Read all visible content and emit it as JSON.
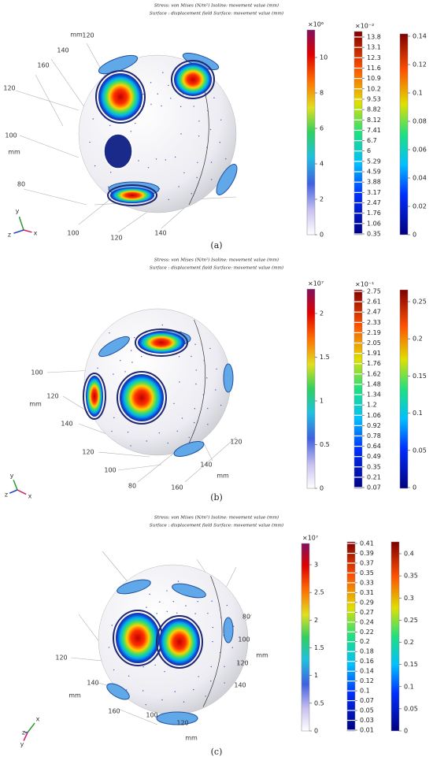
{
  "panels": [
    {
      "header": [
        "Stress: von Mises (N/m²)  Isoline: movement value (mm)",
        "Surface :  displacement field  Surface: movement value (mm)"
      ],
      "axis_labels": [
        "mm",
        "120",
        "140",
        "160",
        "120",
        "100",
        "mm",
        "80",
        "100",
        "120",
        "140"
      ],
      "triad": [
        "y",
        "z",
        "x"
      ],
      "caption": "(a)",
      "colorbars": [
        {
          "exponent": "×10⁶",
          "ticks": [
            10,
            8,
            6,
            4,
            2,
            0
          ]
        },
        {
          "exponent": "×10⁻²",
          "ticks": [
            13.8,
            13.1,
            12.3,
            11.6,
            10.9,
            10.2,
            9.53,
            8.82,
            8.12,
            7.41,
            6.7,
            6,
            5.29,
            4.59,
            3.88,
            3.17,
            2.47,
            1.76,
            1.06,
            0.35
          ]
        },
        {
          "ticks": [
            0.14,
            0.12,
            0.1,
            0.08,
            0.06,
            0.04,
            0.02,
            0
          ]
        }
      ]
    },
    {
      "header": [
        "Stress: von Mises (N/m²)  Isoline: movement value (mm)",
        "Surface :  displacement field  Surface: movement value (mm)"
      ],
      "axis_labels": [
        "100",
        "mm",
        "120",
        "140",
        "120",
        "100",
        "80",
        "160",
        "mm",
        "140",
        "120"
      ],
      "triad": [
        "y",
        "z",
        "x"
      ],
      "caption": "(b)",
      "colorbars": [
        {
          "exponent": "×10⁷",
          "ticks": [
            2,
            1.5,
            1,
            0.5,
            0
          ]
        },
        {
          "exponent": "×10⁻¹",
          "ticks": [
            2.75,
            2.61,
            2.47,
            2.33,
            2.19,
            2.05,
            1.91,
            1.76,
            1.62,
            1.48,
            1.34,
            1.2,
            1.06,
            0.92,
            0.78,
            0.64,
            0.49,
            0.35,
            0.21,
            0.07
          ]
        },
        {
          "ticks": [
            0.25,
            0.2,
            0.15,
            0.1,
            0.05,
            0
          ]
        }
      ]
    },
    {
      "header": [
        "Stress: von Mises (N/m²)  Isoline: movement value (mm)",
        "Surface :  displacement field  Surface: movement value (mm)"
      ],
      "axis_labels": [
        "80",
        "100",
        "mm",
        "120",
        "140",
        "120",
        "140",
        "mm",
        "160",
        "100",
        "120",
        "mm"
      ],
      "triad": [
        "x",
        "z",
        "y"
      ],
      "caption": "(c)",
      "colorbars": [
        {
          "exponent": "×10⁷",
          "ticks": [
            3,
            2.5,
            2,
            1.5,
            1,
            0.5,
            0
          ]
        },
        {
          "ticks": [
            0.41,
            0.39,
            0.37,
            0.35,
            0.33,
            0.31,
            0.29,
            0.27,
            0.24,
            0.22,
            0.2,
            0.18,
            0.16,
            0.14,
            0.12,
            0.1,
            0.07,
            0.05,
            0.03,
            0.01
          ]
        },
        {
          "ticks": [
            0.4,
            0.35,
            0.3,
            0.25,
            0.2,
            0.15,
            0.1,
            0.05,
            0
          ]
        }
      ]
    }
  ]
}
